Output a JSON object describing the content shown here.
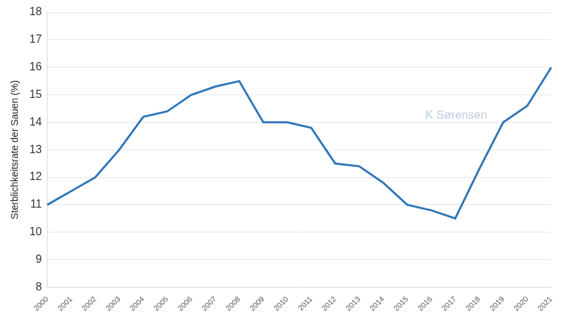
{
  "chart_data": {
    "type": "line",
    "y_label": "Sterblichkeitsrate der Sauen (%)",
    "annotation": "K Sørensen",
    "categories": [
      "2000",
      "2001",
      "2002",
      "2003",
      "2004",
      "2005",
      "2006",
      "2007",
      "2008",
      "2009",
      "2010",
      "2011",
      "2012",
      "2013",
      "2014",
      "2015",
      "2016",
      "2017",
      "2018",
      "2019",
      "2020",
      "2021"
    ],
    "values": [
      11,
      11.5,
      12,
      13,
      14.2,
      14.4,
      15,
      15.3,
      15.5,
      14,
      14,
      13.8,
      12.5,
      12.4,
      11.8,
      11,
      10.8,
      10.5,
      12.3,
      14,
      14.6,
      16
    ],
    "color": "#2e75b6",
    "ylim": [
      8,
      18
    ],
    "yticks": [
      8,
      9,
      10,
      11,
      12,
      13,
      14,
      15,
      16,
      17,
      18
    ],
    "grid": true
  }
}
